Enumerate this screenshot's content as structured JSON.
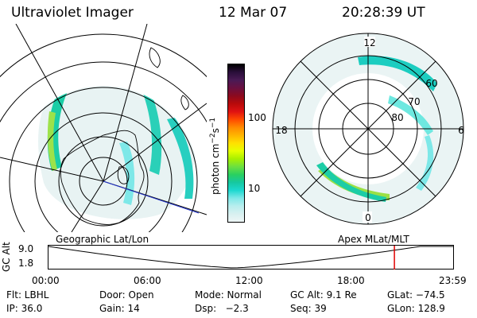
{
  "header": {
    "title": "Ultraviolet Imager",
    "date": "12 Mar 07",
    "time": "20:28:39 UT"
  },
  "colorbar": {
    "label": "photon cm",
    "label_sup1": "−2",
    "label_s": "s",
    "label_sup2": "−1",
    "ticks": [
      "100",
      "10"
    ],
    "colors": [
      "#000000",
      "#2a0f3a",
      "#4a1a55",
      "#6a1040",
      "#8c0a1e",
      "#b80a0a",
      "#e01212",
      "#ff4a00",
      "#ff8a00",
      "#ffb400",
      "#ffe000",
      "#e6ff00",
      "#a8f000",
      "#6ce040",
      "#2ad060",
      "#16c8a0",
      "#1cd8d0",
      "#7ee8e8",
      "#b8eeee",
      "#d8f0f0",
      "#eef6f6"
    ]
  },
  "right_map": {
    "mlt_labels": {
      "top": "12",
      "left": "18",
      "right": "6",
      "bottom": "0"
    },
    "lat_labels": [
      "60",
      "70",
      "80"
    ]
  },
  "timeline": {
    "left_label": "Geographic Lat/Lon",
    "right_label": "Apex MLat/MLT",
    "yaxis_title": "GC Alt",
    "ymax": "9.0",
    "ymin": "1.8",
    "xticks": [
      "00:00",
      "06:00",
      "12:00",
      "18:00",
      "23:59"
    ],
    "marker_color": "#e00000"
  },
  "status": {
    "flt": "Flt: LBHL",
    "ip": "IP: 36.0",
    "door": "Door: Open",
    "gain": "Gain: 14",
    "mode": "Mode: Normal",
    "dsp": "Dsp:   −2.3",
    "gcalt": "GC Alt: 9.1 Re",
    "seq": "Seq: 39",
    "glat": "GLat: −74.5",
    "glon": "GLon: 128.9"
  }
}
